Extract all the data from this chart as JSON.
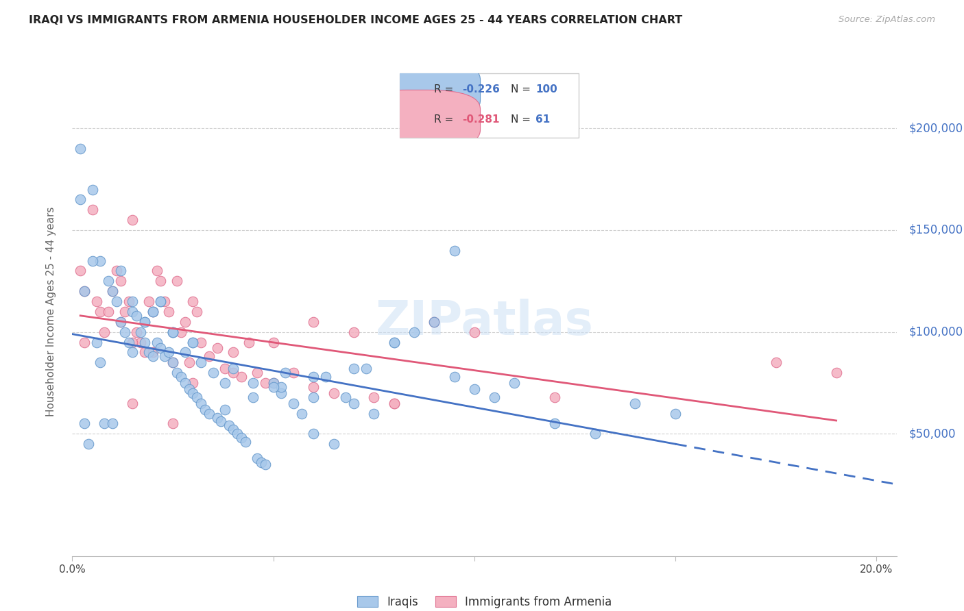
{
  "title": "IRAQI VS IMMIGRANTS FROM ARMENIA HOUSEHOLDER INCOME AGES 25 - 44 YEARS CORRELATION CHART",
  "source": "Source: ZipAtlas.com",
  "ylabel": "Householder Income Ages 25 - 44 years",
  "xlim": [
    0.0,
    0.205
  ],
  "ylim": [
    -10000,
    230000
  ],
  "yticks": [
    50000,
    100000,
    150000,
    200000
  ],
  "ytick_labels": [
    "$50,000",
    "$100,000",
    "$150,000",
    "$200,000"
  ],
  "xticks": [
    0.0,
    0.05,
    0.1,
    0.15,
    0.2
  ],
  "xtick_labels": [
    "0.0%",
    "",
    "",
    "",
    "20.0%"
  ],
  "background_color": "#ffffff",
  "grid_color": "#d0d0d0",
  "iraqis_marker_color": "#a8c8ea",
  "iraqis_edge_color": "#6699cc",
  "iraqis_line_color": "#4472c4",
  "armenia_marker_color": "#f4b0c0",
  "armenia_edge_color": "#e07090",
  "armenia_line_color": "#e05878",
  "iraqis_R": "-0.226",
  "iraqis_N": "100",
  "armenia_R": "-0.281",
  "armenia_N": "61",
  "iraqis_x": [
    0.002,
    0.003,
    0.004,
    0.005,
    0.006,
    0.007,
    0.008,
    0.009,
    0.01,
    0.011,
    0.012,
    0.013,
    0.014,
    0.015,
    0.015,
    0.016,
    0.017,
    0.018,
    0.018,
    0.019,
    0.02,
    0.02,
    0.021,
    0.022,
    0.022,
    0.023,
    0.024,
    0.025,
    0.025,
    0.026,
    0.027,
    0.028,
    0.029,
    0.03,
    0.03,
    0.031,
    0.032,
    0.033,
    0.034,
    0.035,
    0.036,
    0.037,
    0.038,
    0.039,
    0.04,
    0.041,
    0.042,
    0.043,
    0.045,
    0.046,
    0.047,
    0.048,
    0.05,
    0.052,
    0.053,
    0.055,
    0.057,
    0.06,
    0.063,
    0.065,
    0.068,
    0.07,
    0.073,
    0.075,
    0.08,
    0.085,
    0.09,
    0.095,
    0.1,
    0.105,
    0.11,
    0.12,
    0.13,
    0.14,
    0.15,
    0.002,
    0.003,
    0.005,
    0.007,
    0.01,
    0.012,
    0.015,
    0.018,
    0.022,
    0.025,
    0.028,
    0.032,
    0.038,
    0.045,
    0.052,
    0.06,
    0.07,
    0.08,
    0.095,
    0.02,
    0.025,
    0.03,
    0.04,
    0.05,
    0.06
  ],
  "iraqis_y": [
    190000,
    120000,
    45000,
    170000,
    95000,
    135000,
    55000,
    125000,
    55000,
    115000,
    105000,
    100000,
    95000,
    110000,
    90000,
    108000,
    100000,
    105000,
    95000,
    90000,
    88000,
    110000,
    95000,
    92000,
    115000,
    88000,
    90000,
    85000,
    100000,
    80000,
    78000,
    75000,
    72000,
    70000,
    95000,
    68000,
    65000,
    62000,
    60000,
    80000,
    58000,
    56000,
    75000,
    54000,
    52000,
    50000,
    48000,
    46000,
    75000,
    38000,
    36000,
    35000,
    75000,
    70000,
    80000,
    65000,
    60000,
    50000,
    78000,
    45000,
    68000,
    65000,
    82000,
    60000,
    95000,
    100000,
    105000,
    78000,
    72000,
    68000,
    75000,
    55000,
    50000,
    65000,
    60000,
    165000,
    55000,
    135000,
    85000,
    120000,
    130000,
    115000,
    105000,
    115000,
    100000,
    90000,
    85000,
    62000,
    68000,
    73000,
    78000,
    82000,
    95000,
    140000,
    110000,
    100000,
    95000,
    82000,
    73000,
    68000
  ],
  "armenia_x": [
    0.002,
    0.003,
    0.005,
    0.007,
    0.008,
    0.01,
    0.011,
    0.012,
    0.013,
    0.014,
    0.015,
    0.016,
    0.017,
    0.018,
    0.019,
    0.02,
    0.021,
    0.022,
    0.023,
    0.024,
    0.025,
    0.026,
    0.027,
    0.028,
    0.029,
    0.03,
    0.031,
    0.032,
    0.034,
    0.036,
    0.038,
    0.04,
    0.042,
    0.044,
    0.046,
    0.048,
    0.05,
    0.055,
    0.06,
    0.065,
    0.07,
    0.075,
    0.08,
    0.09,
    0.1,
    0.003,
    0.006,
    0.009,
    0.012,
    0.015,
    0.02,
    0.025,
    0.03,
    0.04,
    0.05,
    0.06,
    0.08,
    0.12,
    0.175,
    0.19,
    0.015
  ],
  "armenia_y": [
    130000,
    120000,
    160000,
    110000,
    100000,
    120000,
    130000,
    125000,
    110000,
    115000,
    155000,
    100000,
    95000,
    90000,
    115000,
    110000,
    130000,
    125000,
    115000,
    110000,
    55000,
    125000,
    100000,
    105000,
    85000,
    115000,
    110000,
    95000,
    88000,
    92000,
    82000,
    90000,
    78000,
    95000,
    80000,
    75000,
    95000,
    80000,
    105000,
    70000,
    100000,
    68000,
    65000,
    105000,
    100000,
    95000,
    115000,
    110000,
    105000,
    95000,
    90000,
    85000,
    75000,
    80000,
    75000,
    73000,
    65000,
    68000,
    85000,
    80000,
    65000
  ]
}
